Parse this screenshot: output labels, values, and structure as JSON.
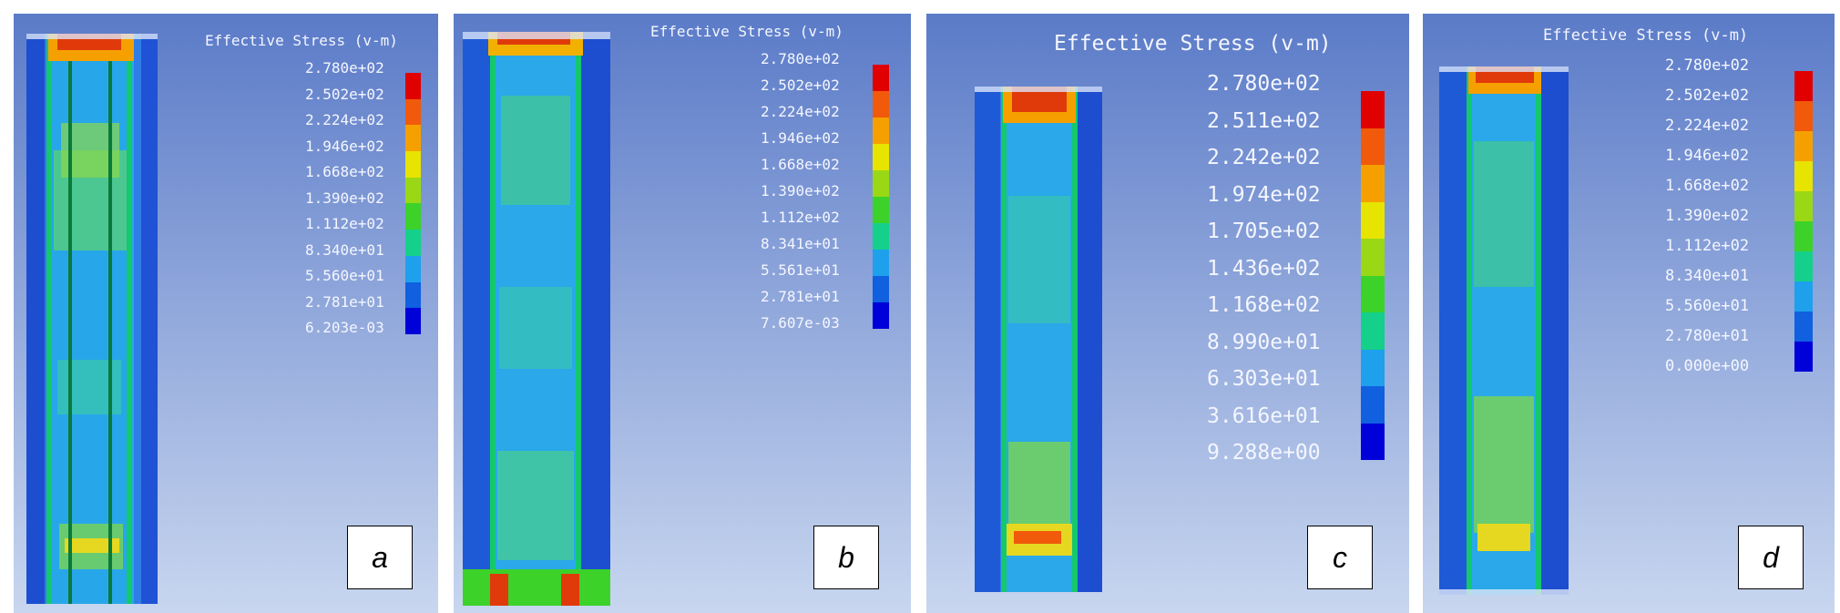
{
  "panels": [
    {
      "id": "a",
      "label": "a",
      "legend_title": "Effective Stress (v-m)",
      "legend_values": [
        "2.780e+02",
        "2.502e+02",
        "2.224e+02",
        "1.946e+02",
        "1.668e+02",
        "1.390e+02",
        "1.112e+02",
        "8.340e+01",
        "5.560e+01",
        "2.781e+01",
        "6.203e-03"
      ]
    },
    {
      "id": "b",
      "label": "b",
      "legend_title": "Effective Stress (v-m)",
      "legend_values": [
        "2.780e+02",
        "2.502e+02",
        "2.224e+02",
        "1.946e+02",
        "1.668e+02",
        "1.390e+02",
        "1.112e+02",
        "8.341e+01",
        "5.561e+01",
        "2.781e+01",
        "7.607e-03"
      ]
    },
    {
      "id": "c",
      "label": "c",
      "legend_title": "Effective Stress (v-m)",
      "legend_values": [
        "2.780e+02",
        "2.511e+02",
        "2.242e+02",
        "1.974e+02",
        "1.705e+02",
        "1.436e+02",
        "1.168e+02",
        "8.990e+01",
        "6.303e+01",
        "3.616e+01",
        "9.288e+00"
      ]
    },
    {
      "id": "d",
      "label": "d",
      "legend_title": "Effective Stress (v-m)",
      "legend_values": [
        "2.780e+02",
        "2.502e+02",
        "2.224e+02",
        "1.946e+02",
        "1.668e+02",
        "1.390e+02",
        "1.112e+02",
        "8.340e+01",
        "5.560e+01",
        "2.780e+01",
        "0.000e+00"
      ]
    }
  ],
  "colors": {
    "scale": [
      "#e00000",
      "#f05a0a",
      "#f5a000",
      "#e6e400",
      "#9ad816",
      "#3cd22a",
      "#14d08a",
      "#16d8d0",
      "#1ea0ec",
      "#1060e0",
      "#0000d8"
    ],
    "background_top": "#5d7cc9",
    "background_bottom": "#c6d4ee"
  }
}
